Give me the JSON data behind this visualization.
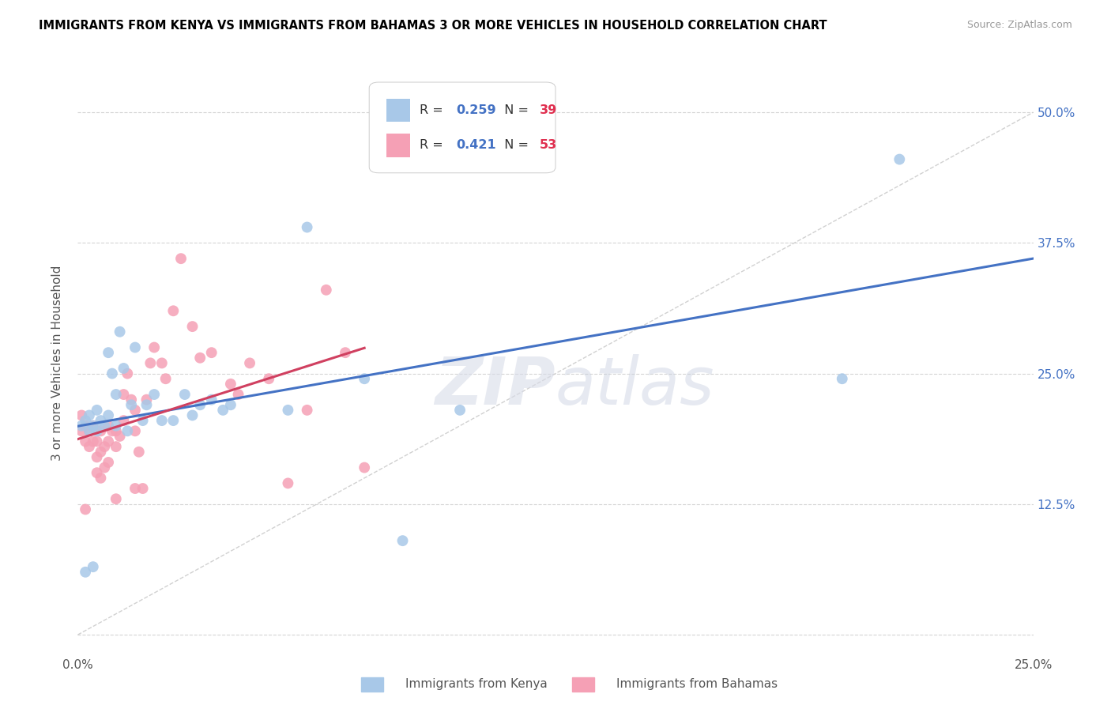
{
  "title": "IMMIGRANTS FROM KENYA VS IMMIGRANTS FROM BAHAMAS 3 OR MORE VEHICLES IN HOUSEHOLD CORRELATION CHART",
  "source": "Source: ZipAtlas.com",
  "ylabel": "3 or more Vehicles in Household",
  "xlim": [
    0.0,
    0.25
  ],
  "ylim": [
    -0.02,
    0.54
  ],
  "xticks": [
    0.0,
    0.05,
    0.1,
    0.15,
    0.2,
    0.25
  ],
  "xticklabels": [
    "0.0%",
    "",
    "",
    "",
    "",
    "25.0%"
  ],
  "yticks": [
    0.0,
    0.125,
    0.25,
    0.375,
    0.5
  ],
  "yticklabels": [
    "",
    "12.5%",
    "25.0%",
    "37.5%",
    "50.0%"
  ],
  "kenya_color": "#a8c8e8",
  "bahamas_color": "#f5a0b5",
  "kenya_R": 0.259,
  "kenya_N": 39,
  "bahamas_R": 0.421,
  "bahamas_N": 53,
  "kenya_line_color": "#4472c4",
  "bahamas_line_color": "#d04060",
  "diagonal_color": "#cccccc",
  "legend_R_color": "#4472c4",
  "legend_N_color": "#e03050",
  "kenya_scatter_x": [
    0.001,
    0.002,
    0.003,
    0.003,
    0.004,
    0.005,
    0.005,
    0.006,
    0.007,
    0.008,
    0.008,
    0.009,
    0.01,
    0.01,
    0.011,
    0.012,
    0.013,
    0.014,
    0.015,
    0.017,
    0.018,
    0.02,
    0.022,
    0.025,
    0.028,
    0.03,
    0.032,
    0.035,
    0.038,
    0.04,
    0.055,
    0.06,
    0.075,
    0.085,
    0.1,
    0.2,
    0.215,
    0.002,
    0.004
  ],
  "kenya_scatter_y": [
    0.2,
    0.205,
    0.195,
    0.21,
    0.2,
    0.195,
    0.215,
    0.205,
    0.2,
    0.21,
    0.27,
    0.25,
    0.2,
    0.23,
    0.29,
    0.255,
    0.195,
    0.22,
    0.275,
    0.205,
    0.22,
    0.23,
    0.205,
    0.205,
    0.23,
    0.21,
    0.22,
    0.225,
    0.215,
    0.22,
    0.215,
    0.39,
    0.245,
    0.09,
    0.215,
    0.245,
    0.455,
    0.06,
    0.065
  ],
  "bahamas_scatter_x": [
    0.001,
    0.001,
    0.002,
    0.002,
    0.003,
    0.003,
    0.004,
    0.004,
    0.005,
    0.005,
    0.006,
    0.006,
    0.007,
    0.007,
    0.008,
    0.008,
    0.008,
    0.009,
    0.01,
    0.01,
    0.011,
    0.012,
    0.012,
    0.013,
    0.014,
    0.015,
    0.015,
    0.016,
    0.017,
    0.018,
    0.019,
    0.02,
    0.022,
    0.023,
    0.025,
    0.027,
    0.03,
    0.032,
    0.035,
    0.04,
    0.042,
    0.045,
    0.05,
    0.055,
    0.06,
    0.065,
    0.07,
    0.075,
    0.002,
    0.005,
    0.006,
    0.01,
    0.015
  ],
  "bahamas_scatter_y": [
    0.195,
    0.21,
    0.185,
    0.2,
    0.18,
    0.195,
    0.185,
    0.2,
    0.17,
    0.185,
    0.175,
    0.195,
    0.16,
    0.18,
    0.165,
    0.185,
    0.2,
    0.195,
    0.18,
    0.195,
    0.19,
    0.205,
    0.23,
    0.25,
    0.225,
    0.195,
    0.215,
    0.175,
    0.14,
    0.225,
    0.26,
    0.275,
    0.26,
    0.245,
    0.31,
    0.36,
    0.295,
    0.265,
    0.27,
    0.24,
    0.23,
    0.26,
    0.245,
    0.145,
    0.215,
    0.33,
    0.27,
    0.16,
    0.12,
    0.155,
    0.15,
    0.13,
    0.14
  ]
}
